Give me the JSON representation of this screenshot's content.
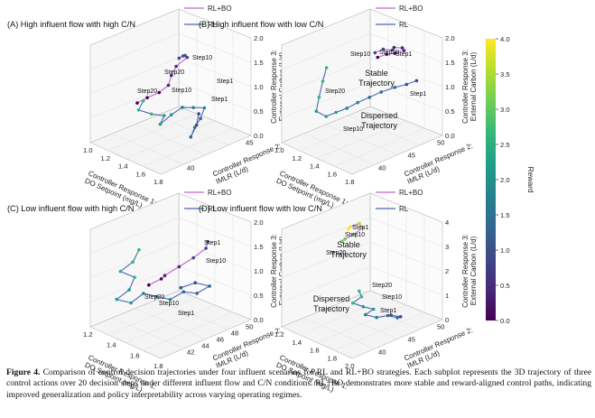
{
  "figure": {
    "caption_label": "Figure 4.",
    "caption_text": "Comparison of control decision trajectories under four influent scenarios for RL and RL+BO strategies. Each subplot represents the 3D trajectory of three control actions over 20 decision steps under different influent flow and C/N conditions. RL+BO demonstrates more stable and reward-aligned control paths, indicating improved generalization and policy interpretability across varying operating regimes."
  },
  "colors": {
    "rl": "#4c66b5",
    "rlbo": "#c163c9",
    "axis": "#b9b9b9",
    "grid": "#e4e4e4"
  },
  "legend": {
    "rlbo": "RL+BO",
    "rl": "RL"
  },
  "axis_labels": {
    "x": [
      "Controller Response 1:",
      "DO Setpoint (mg/L)"
    ],
    "y": [
      "Controller Response 2:",
      "IMLR (L/d)"
    ],
    "z": [
      "Controller Response 3:",
      "External Carbon (L/d)"
    ]
  },
  "colorbar": {
    "label": "Reward",
    "ticks": [
      "4.0",
      "3.5",
      "3.0",
      "2.5",
      "2.0",
      "1.5",
      "1.0",
      "0.5",
      "0.0"
    ],
    "stops": [
      "#fde725",
      "#b5de2b",
      "#6ece58",
      "#35b779",
      "#1f9e89",
      "#26828e",
      "#31688e",
      "#3e4989",
      "#482878",
      "#440154"
    ]
  },
  "chart_data": [
    {
      "type": "scatter",
      "panel": "A",
      "title": "(A)  High influent flow with high C/N",
      "legend_lines": [
        "RL+BO",
        "RL"
      ],
      "x_ticks": [
        "1.0",
        "1.2",
        "1.4",
        "1.6",
        "1.8"
      ],
      "y_ticks": [
        "40",
        "45"
      ],
      "z_ticks": [
        "2.0",
        "1.5",
        "1.0",
        "0.5",
        "0.0"
      ],
      "annotations": [
        "Step10",
        "Step20",
        "Step1",
        "Step10",
        "Step20",
        "Step1"
      ],
      "series": [
        {
          "name": "RL+BO",
          "points": [
            [
              1.5,
              44,
              1.75
            ],
            [
              1.46,
              45,
              1.7
            ],
            [
              1.4,
              46,
              1.6
            ],
            [
              1.34,
              47,
              1.45
            ],
            [
              1.3,
              46,
              1.3
            ],
            [
              1.33,
              45,
              1.2
            ],
            [
              1.38,
              44,
              1.1
            ],
            [
              1.36,
              43,
              1.0
            ],
            [
              1.31,
              42,
              0.92
            ],
            [
              1.28,
              41,
              0.85
            ]
          ]
        },
        {
          "name": "RL",
          "points": [
            [
              1.35,
              41,
              0.95
            ],
            [
              1.38,
              40,
              0.85
            ],
            [
              1.44,
              41,
              0.75
            ],
            [
              1.5,
              42,
              0.7
            ],
            [
              1.54,
              41,
              0.62
            ],
            [
              1.58,
              42,
              0.78
            ],
            [
              1.62,
              43,
              0.9
            ],
            [
              1.66,
              44,
              0.86
            ],
            [
              1.7,
              45,
              0.82
            ],
            [
              1.74,
              44,
              0.7
            ],
            [
              1.76,
              43,
              0.6
            ],
            [
              1.8,
              42,
              0.5
            ],
            [
              1.78,
              43,
              0.66
            ],
            [
              1.72,
              44,
              0.78
            ]
          ]
        }
      ]
    },
    {
      "type": "scatter",
      "panel": "B",
      "title": "(B)  High influent flow with low C/N",
      "legend_lines": [
        "RL+BO",
        "RL"
      ],
      "x_ticks": [
        "1.0",
        "1.2",
        "1.4",
        "1.6",
        "1.8"
      ],
      "y_ticks": [
        "40",
        "45",
        "50"
      ],
      "z_ticks": [
        "2.0",
        "1.5",
        "1.0",
        "0.5",
        "0.0"
      ],
      "annotations": [
        "Step10",
        "Step1",
        "Step20",
        "Stable Trajectory",
        "Step20",
        "Step1",
        "Dispersed Trajectory",
        "Step10"
      ],
      "series": [
        {
          "name": "RL+BO",
          "points": [
            [
              1.55,
              45,
              1.9
            ],
            [
              1.57,
              46,
              1.93
            ],
            [
              1.6,
              47,
              1.88
            ],
            [
              1.62,
              47,
              1.95
            ],
            [
              1.64,
              48,
              1.9
            ],
            [
              1.66,
              48,
              1.86
            ],
            [
              1.63,
              47,
              1.84
            ],
            [
              1.61,
              46,
              1.86
            ],
            [
              1.58,
              45,
              1.83
            ]
          ]
        },
        {
          "name": "RL",
          "points": [
            [
              1.22,
              42,
              1.5
            ],
            [
              1.25,
              41,
              1.3
            ],
            [
              1.28,
              40,
              1.05
            ],
            [
              1.32,
              39,
              0.85
            ],
            [
              1.36,
              40,
              0.72
            ],
            [
              1.4,
              41,
              0.78
            ],
            [
              1.45,
              42,
              0.85
            ],
            [
              1.5,
              43,
              0.95
            ],
            [
              1.56,
              44,
              1.05
            ],
            [
              1.62,
              45,
              1.15
            ],
            [
              1.7,
              46,
              1.25
            ],
            [
              1.76,
              47,
              1.3
            ],
            [
              1.8,
              48,
              1.35
            ]
          ]
        }
      ]
    },
    {
      "type": "scatter",
      "panel": "C",
      "title": "(C)  Low influent flow with high C/N",
      "legend_lines": [
        "RL+BO",
        "RL"
      ],
      "x_ticks": [
        "1.2",
        "1.4",
        "1.6",
        "1.8"
      ],
      "y_ticks": [
        "42",
        "44",
        "46",
        "48",
        "50"
      ],
      "z_ticks": [
        "2.0",
        "1.5",
        "1.0",
        "0.5",
        "0.0"
      ],
      "annotations": [
        "Step1",
        "Step10",
        "Step20",
        "Step10",
        "Step1"
      ],
      "series": [
        {
          "name": "RL+BO",
          "points": [
            [
              1.72,
              47,
              1.7
            ],
            [
              1.7,
              47,
              1.55
            ],
            [
              1.66,
              46,
              1.4
            ],
            [
              1.6,
              45,
              1.25
            ],
            [
              1.54,
              44,
              1.1
            ],
            [
              1.5,
              44,
              1.0
            ],
            [
              1.46,
              43,
              0.92
            ]
          ]
        },
        {
          "name": "RL",
          "points": [
            [
              1.25,
              44,
              1.4
            ],
            [
              1.28,
              43,
              1.25
            ],
            [
              1.24,
              42,
              1.1
            ],
            [
              1.3,
              43,
              0.95
            ],
            [
              1.34,
              42,
              0.8
            ],
            [
              1.3,
              41,
              0.65
            ],
            [
              1.36,
              42,
              0.55
            ],
            [
              1.4,
              43,
              0.7
            ],
            [
              1.45,
              44,
              0.6
            ],
            [
              1.5,
              45,
              0.5
            ],
            [
              1.55,
              46,
              0.62
            ],
            [
              1.6,
              47,
              0.55
            ],
            [
              1.64,
              48,
              0.65
            ],
            [
              1.58,
              47,
              0.75
            ],
            [
              1.52,
              46,
              0.68
            ]
          ]
        }
      ]
    },
    {
      "type": "scatter",
      "panel": "D",
      "title": "(D)  Low influent flow with low C/N",
      "legend_lines": [
        "RL+BO",
        "RL"
      ],
      "x_ticks": [
        "1.2",
        "1.4",
        "1.6",
        "1.8",
        "2.0"
      ],
      "y_ticks": [
        "40",
        "45",
        "50"
      ],
      "z_ticks": [
        "4",
        "3",
        "2",
        "1",
        "0"
      ],
      "annotations": [
        "Step1",
        "Step10",
        "Stable Trajectory",
        "Step20",
        "Step20",
        "Dispersed Trajectory",
        "Step10",
        "Step1"
      ],
      "series": [
        {
          "name": "RL+BO",
          "points": [
            [
              1.3,
              46,
              3.6
            ],
            [
              1.33,
              46,
              3.75
            ],
            [
              1.36,
              47,
              3.82
            ],
            [
              1.4,
              47,
              3.7
            ],
            [
              1.38,
              46,
              3.5
            ],
            [
              1.34,
              45,
              3.35
            ],
            [
              1.3,
              45,
              3.2
            ]
          ]
        },
        {
          "name": "RL",
          "points": [
            [
              1.6,
              44,
              1.6
            ],
            [
              1.63,
              44,
              1.4
            ],
            [
              1.6,
              43,
              1.2
            ],
            [
              1.65,
              44,
              1.0
            ],
            [
              1.7,
              45,
              0.85
            ],
            [
              1.68,
              44,
              0.7
            ],
            [
              1.74,
              45,
              0.55
            ],
            [
              1.8,
              46,
              0.6
            ],
            [
              1.84,
              47,
              0.45
            ],
            [
              1.88,
              47,
              0.55
            ],
            [
              1.84,
              46,
              0.68
            ]
          ]
        }
      ]
    }
  ]
}
